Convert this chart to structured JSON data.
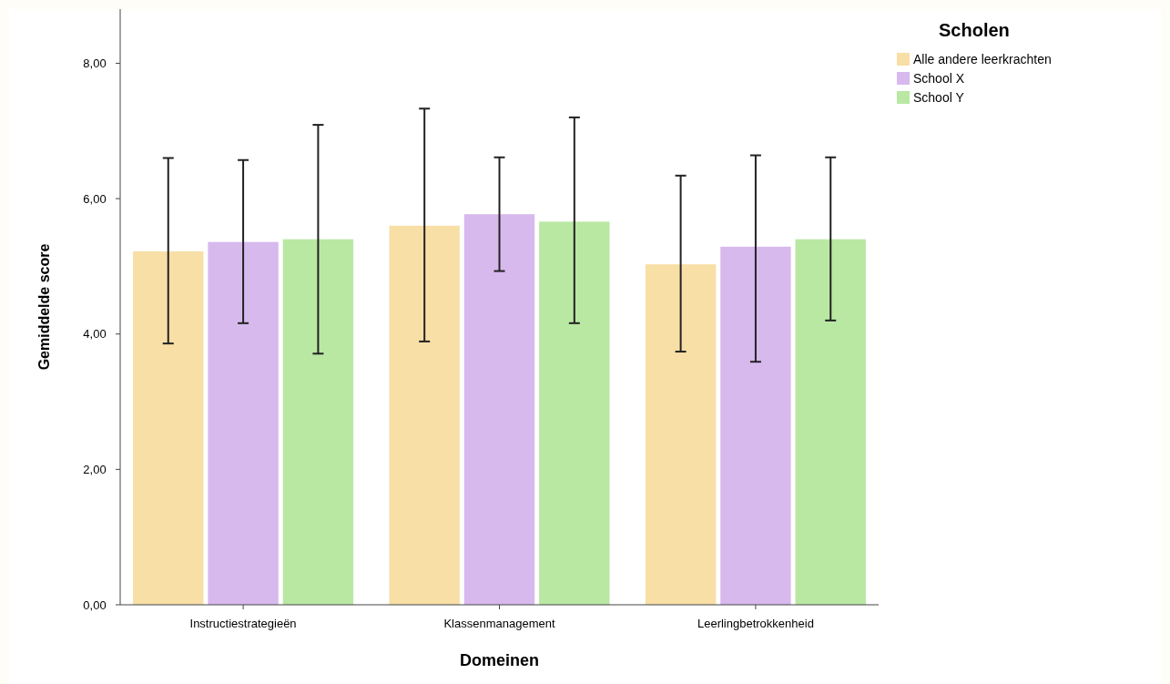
{
  "chart_data": {
    "type": "bar",
    "xlabel": "Domeinen",
    "ylabel": "Gemiddelde score",
    "legend_title": "Scholen",
    "legend": "top right",
    "grid": false,
    "categories": [
      "Instructiestrategieën",
      "Klassenmanagement",
      "Leerlingbetrokkenheid"
    ],
    "ylim": [
      0,
      8.8
    ],
    "yticks": [
      {
        "value": 0,
        "label": "0,00"
      },
      {
        "value": 2,
        "label": "2,00"
      },
      {
        "value": 4,
        "label": "4,00"
      },
      {
        "value": 6,
        "label": "6,00"
      },
      {
        "value": 8,
        "label": "8,00"
      }
    ],
    "series": [
      {
        "name": "Alle andere leerkrachten",
        "color": "#f8dfa6",
        "values": [
          5.22,
          5.6,
          5.03
        ],
        "errors": [
          [
            3.86,
            6.6
          ],
          [
            3.89,
            7.33
          ],
          [
            3.74,
            6.34
          ]
        ]
      },
      {
        "name": "School X",
        "color": "#d7b9ee",
        "values": [
          5.36,
          5.77,
          5.29
        ],
        "errors": [
          [
            4.16,
            6.57
          ],
          [
            4.93,
            6.61
          ],
          [
            3.59,
            6.64
          ]
        ]
      },
      {
        "name": "School Y",
        "color": "#b9e8a3",
        "values": [
          5.4,
          5.66,
          5.4
        ],
        "errors": [
          [
            3.71,
            7.09
          ],
          [
            4.16,
            7.2
          ],
          [
            4.2,
            6.61
          ]
        ]
      }
    ]
  }
}
